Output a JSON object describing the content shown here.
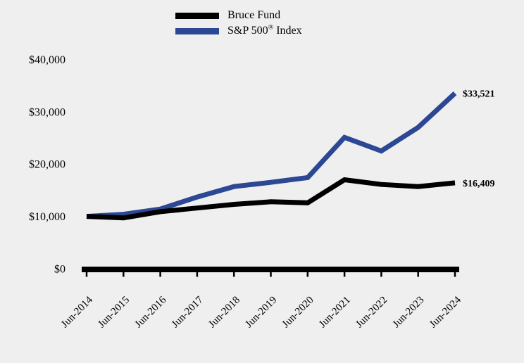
{
  "page": {
    "background_color": "#efefef",
    "text_color": "#000000"
  },
  "legend": {
    "items": [
      {
        "label": "Bruce Fund",
        "color": "#000000"
      },
      {
        "label": "S&P 500® Index",
        "label_pre": "S&P 500",
        "label_sup": "®",
        "label_post": " Index",
        "color": "#2c4793"
      }
    ]
  },
  "chart_data": {
    "type": "line",
    "x": [
      "Jun-2014",
      "Jun-2015",
      "Jun-2016",
      "Jun-2017",
      "Jun-2018",
      "Jun-2019",
      "Jun-2020",
      "Jun-2021",
      "Jun-2022",
      "Jun-2023",
      "Jun-2024"
    ],
    "series": [
      {
        "name": "Bruce Fund",
        "color": "#000000",
        "values": [
          10000,
          9700,
          10900,
          11600,
          12300,
          12800,
          12600,
          17000,
          16100,
          15700,
          16409
        ],
        "end_label": "$16,409"
      },
      {
        "name": "S&P 500® Index",
        "color": "#2c4793",
        "values": [
          10000,
          10400,
          11400,
          13700,
          15700,
          16500,
          17400,
          25100,
          22500,
          27000,
          33521
        ],
        "end_label": "$33,521"
      }
    ],
    "ytick_values": [
      0,
      10000,
      20000,
      30000,
      40000
    ],
    "ytick_labels": [
      "$0",
      "$10,000",
      "$20,000",
      "$30,000",
      "$40,000"
    ],
    "ylim": [
      0,
      40000
    ],
    "xlabel": "",
    "ylabel": "",
    "grid": false,
    "legend_position": "top-center"
  }
}
